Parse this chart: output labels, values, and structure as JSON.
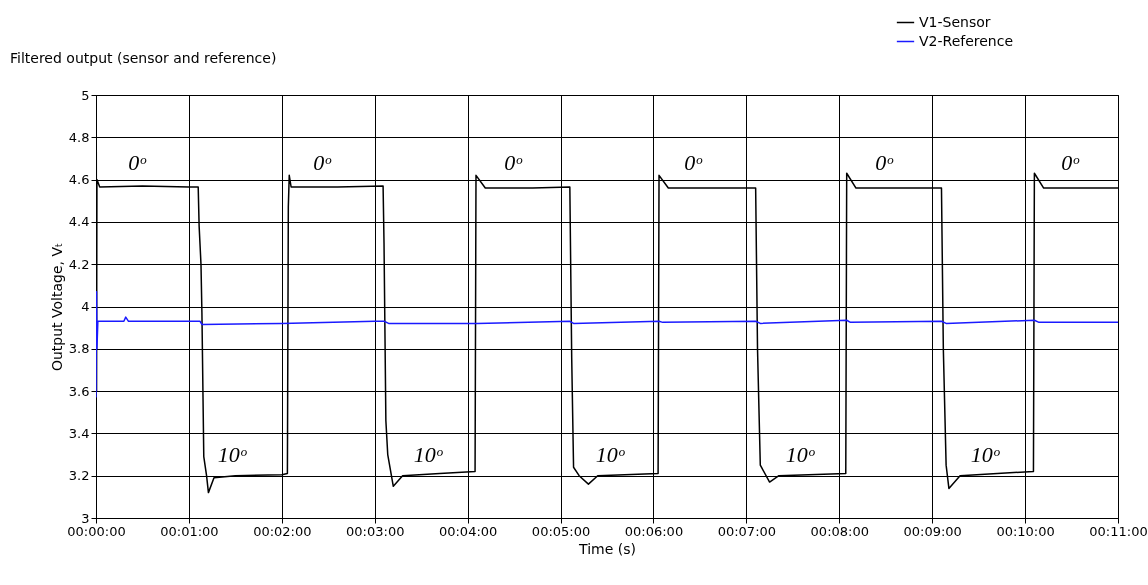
{
  "chart_data": {
    "type": "line",
    "title": "Filtered output (sensor and reference)",
    "xlabel": "Time (s)",
    "ylabel": "Output Voltage, Vₜ",
    "xlim": [
      0,
      11
    ],
    "xticks": [
      {
        "value": 0,
        "label": "00:00:00"
      },
      {
        "value": 1,
        "label": "00:01:00"
      },
      {
        "value": 2,
        "label": "00:02:00"
      },
      {
        "value": 3,
        "label": "00:03:00"
      },
      {
        "value": 4,
        "label": "00:04:00"
      },
      {
        "value": 5,
        "label": "00:05:00"
      },
      {
        "value": 6,
        "label": "00:06:00"
      },
      {
        "value": 7,
        "label": "00:07:00"
      },
      {
        "value": 8,
        "label": "00:08:00"
      },
      {
        "value": 9,
        "label": "00:09:00"
      },
      {
        "value": 10,
        "label": "00:10:00"
      },
      {
        "value": 11,
        "label": "00:11:00"
      }
    ],
    "ylim": [
      3,
      5
    ],
    "yticks": [
      3,
      3.2,
      3.4,
      3.6,
      3.8,
      4,
      4.2,
      4.4,
      4.6,
      4.8,
      5
    ],
    "grid": true,
    "legend": "top right",
    "line_style": "solid",
    "marker": "none",
    "series": [
      {
        "name": "V1-Sensor",
        "color": "#000000",
        "x": [
          0,
          0.003,
          0.006,
          0.01,
          0.04,
          0.5,
          1.0,
          1.1,
          1.11,
          1.13,
          1.14,
          1.16,
          1.19,
          1.21,
          1.27,
          1.5,
          2.0,
          2.06,
          2.07,
          2.08,
          2.1,
          2.6,
          3.09,
          3.1,
          3.12,
          3.14,
          3.2,
          3.3,
          3.7,
          4.08,
          4.09,
          4.19,
          4.7,
          5.1,
          5.12,
          5.14,
          5.2,
          5.3,
          5.4,
          6.05,
          6.06,
          6.16,
          6.6,
          7.1,
          7.12,
          7.15,
          7.25,
          7.35,
          8.07,
          8.08,
          8.18,
          8.6,
          9.1,
          9.12,
          9.15,
          9.18,
          9.3,
          10.09,
          10.1,
          10.2,
          11
        ],
        "values": [
          3.0,
          4.73,
          3.6,
          4.6,
          4.565,
          4.57,
          4.565,
          4.565,
          4.38,
          4.2,
          3.97,
          3.29,
          3.2,
          3.12,
          3.19,
          3.2,
          3.205,
          3.21,
          4.47,
          4.62,
          4.565,
          4.565,
          4.57,
          4.3,
          3.46,
          3.3,
          3.15,
          3.2,
          3.21,
          3.22,
          4.62,
          4.56,
          4.56,
          4.565,
          3.76,
          3.24,
          3.2,
          3.16,
          3.2,
          3.21,
          4.62,
          4.56,
          4.56,
          4.56,
          3.8,
          3.25,
          3.17,
          3.2,
          3.21,
          4.63,
          4.56,
          4.56,
          4.56,
          3.8,
          3.25,
          3.14,
          3.2,
          3.22,
          4.63,
          4.56,
          4.56
        ]
      },
      {
        "name": "V2-Reference",
        "color": "#1a1aff",
        "x": [
          0,
          0.005,
          0.01,
          0.02,
          0.3,
          0.32,
          0.35,
          1.0,
          1.12,
          1.14,
          2.0,
          3.0,
          3.1,
          3.15,
          4.1,
          5.1,
          5.14,
          6.06,
          6.1,
          7.1,
          7.15,
          8.08,
          8.12,
          9.1,
          9.15,
          10.1,
          10.15,
          11
        ],
        "values": [
          3.57,
          4.07,
          3.8,
          3.93,
          3.93,
          3.95,
          3.93,
          3.93,
          3.93,
          3.915,
          3.92,
          3.93,
          3.93,
          3.92,
          3.92,
          3.93,
          3.92,
          3.93,
          3.925,
          3.93,
          3.92,
          3.935,
          3.925,
          3.93,
          3.92,
          3.935,
          3.925,
          3.925
        ]
      }
    ],
    "annotations": [
      "0ᵒ",
      "0ᵒ",
      "0ᵒ",
      "0ᵒ",
      "0ᵒ",
      "0ᵒ",
      "10ᵒ",
      "10ᵒ",
      "10ᵒ",
      "10ᵒ",
      "10ᵒ"
    ]
  }
}
